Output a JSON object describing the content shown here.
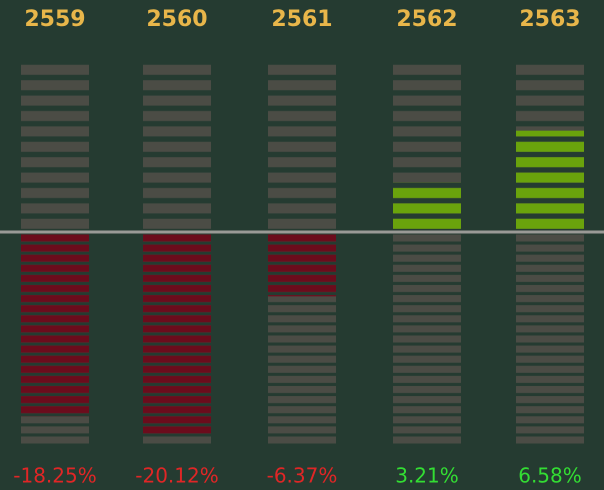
{
  "chart_data": {
    "type": "bar",
    "categories": [
      "2559",
      "2560",
      "2561",
      "2562",
      "2563"
    ],
    "values": [
      -18.25,
      -20.12,
      -6.37,
      3.21,
      6.58
    ],
    "value_labels": [
      "-18.25%",
      "-20.12%",
      "-6.37%",
      "3.21%",
      "6.58%"
    ],
    "colors": {
      "positive": "#6aa30c",
      "negative": "#6b0c1c"
    },
    "label_colors": {
      "positive": "#33dd33",
      "negative": "#e02626"
    }
  }
}
